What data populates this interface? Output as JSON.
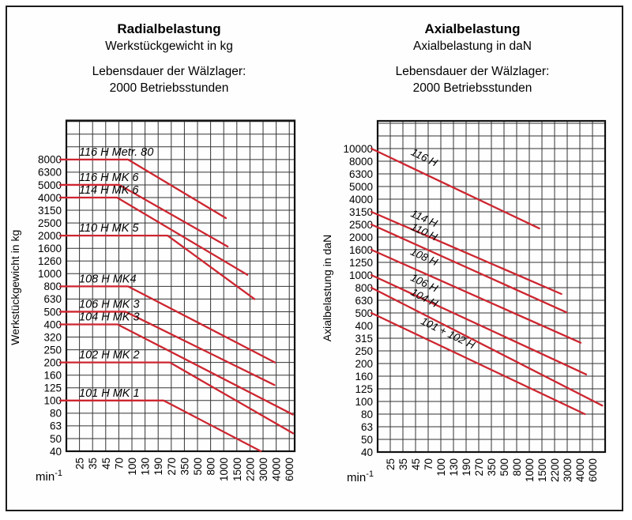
{
  "colors": {
    "series": "#cd2630",
    "grid": "#333333",
    "axis": "#111111",
    "text": "#000000"
  },
  "chart_data": [
    {
      "id": "radial",
      "type": "line",
      "title": "Radialbelastung",
      "subtitle": "Werkstückgewicht in kg",
      "note_line1": "Lebensdauer der Wälzlager:",
      "note_line2": "2000 Betriebsstunden",
      "y_axis_title": "Werkstückgewicht in kg",
      "x_unit": {
        "base": "min",
        "exponent": "-1"
      },
      "x_ticks": [
        25,
        35,
        45,
        70,
        100,
        130,
        190,
        270,
        350,
        500,
        800,
        1000,
        1500,
        2200,
        3000,
        4000,
        6000
      ],
      "y_ticks": [
        40,
        50,
        63,
        80,
        100,
        125,
        160,
        200,
        250,
        320,
        400,
        500,
        630,
        800,
        1000,
        1260,
        1600,
        2000,
        2500,
        3150,
        4000,
        5000,
        6300,
        8000
      ],
      "grid": true,
      "legend_position": "inline-labels",
      "series": [
        {
          "name": "116 H Metr. 80",
          "max_value": 8000,
          "flat_to_rpm": 90,
          "end_rpm": 1070,
          "end_value": 2730
        },
        {
          "name": "116 H MK 6",
          "max_value": 5000,
          "flat_to_rpm": 71,
          "end_rpm": 1130,
          "end_value": 1650
        },
        {
          "name": "114 H MK 6",
          "max_value": 4000,
          "flat_to_rpm": 66,
          "end_rpm": 2040,
          "end_value": 980
        },
        {
          "name": "110 H MK 5",
          "max_value": 2000,
          "flat_to_rpm": 245,
          "end_rpm": 2450,
          "end_value": 630
        },
        {
          "name": "108 H MK4",
          "max_value": 800,
          "flat_to_rpm": 90,
          "end_rpm": 3890,
          "end_value": 200
        },
        {
          "name": "106 H MK 3",
          "max_value": 500,
          "flat_to_rpm": 84,
          "end_rpm": 3850,
          "end_value": 132
        },
        {
          "name": "104 H MK 3",
          "max_value": 400,
          "flat_to_rpm": 67,
          "end_rpm": 6700,
          "end_value": 78
        },
        {
          "name": "102 H MK 2",
          "max_value": 200,
          "flat_to_rpm": 260,
          "end_rpm": 6760,
          "end_value": 55
        },
        {
          "name": "101 H MK 1",
          "max_value": 100,
          "flat_to_rpm": 220,
          "end_rpm": 2850,
          "end_value": 40
        }
      ]
    },
    {
      "id": "axial",
      "type": "line",
      "title": "Axialbelastung",
      "subtitle": "Axialbelastung in daN",
      "note_line1": "Lebensdauer der Wälzlager:",
      "note_line2": "2000 Betriebsstunden",
      "y_axis_title": "Axialbelastung in daN",
      "x_unit": {
        "base": "min",
        "exponent": "-1"
      },
      "x_ticks": [
        25,
        35,
        45,
        70,
        100,
        130,
        190,
        270,
        350,
        500,
        800,
        1000,
        1500,
        2200,
        3000,
        4000,
        6000
      ],
      "y_ticks": [
        40,
        50,
        63,
        80,
        100,
        125,
        160,
        200,
        250,
        315,
        400,
        500,
        630,
        800,
        1000,
        1250,
        1600,
        2000,
        2500,
        3150,
        4000,
        5000,
        6300,
        8000,
        10000
      ],
      "grid": true,
      "legend_position": "inline-labels",
      "series": [
        {
          "name": "116 H",
          "max_value": 10000,
          "end_rpm": 1380,
          "end_value": 2330
        },
        {
          "name": "114 H",
          "max_value": 3150,
          "end_rpm": 2600,
          "end_value": 710
        },
        {
          "name": "110 H",
          "max_value": 2500,
          "end_rpm": 2950,
          "end_value": 505
        },
        {
          "name": "108 H",
          "max_value": 1600,
          "end_rpm": 4100,
          "end_value": 290
        },
        {
          "name": "106 H",
          "max_value": 1000,
          "end_rpm": 4900,
          "end_value": 165
        },
        {
          "name": "104 H",
          "max_value": 800,
          "end_rpm": 8200,
          "end_value": 93
        },
        {
          "name": "101 + 102 H",
          "max_value": 500,
          "end_rpm": 4700,
          "end_value": 80,
          "label_dx": 87
        }
      ]
    }
  ]
}
